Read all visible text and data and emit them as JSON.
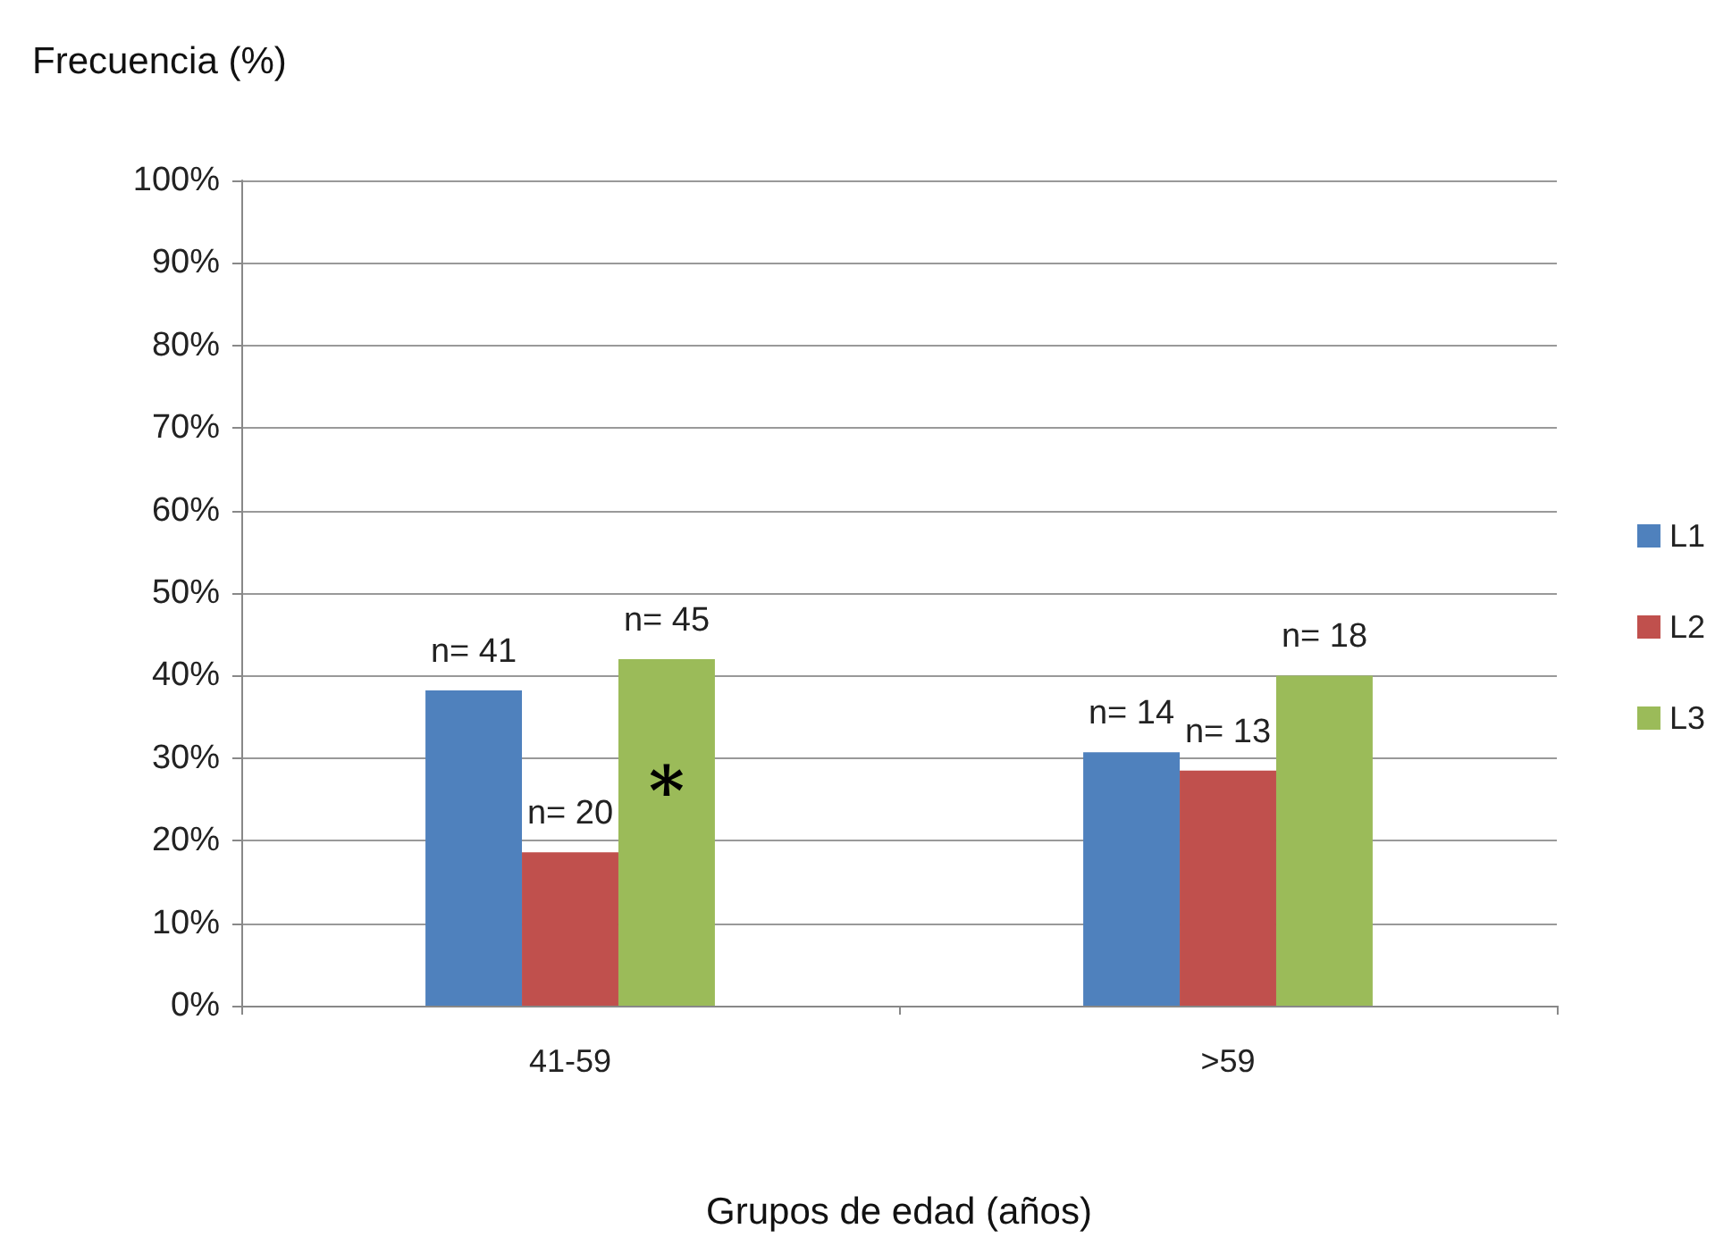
{
  "chart_data": {
    "type": "bar",
    "ylabel": "Frecuencia (%)",
    "xlabel": "Grupos de edad (años)",
    "categories": [
      "41-59",
      ">59"
    ],
    "series": [
      {
        "name": "L1",
        "color": "#4f81bd",
        "values": [
          38.2,
          30.7
        ]
      },
      {
        "name": "L2",
        "color": "#c0504d",
        "values": [
          18.6,
          28.5
        ]
      },
      {
        "name": "L3",
        "color": "#9bbb59",
        "values": [
          42,
          40
        ]
      }
    ],
    "ylim": [
      0,
      100
    ],
    "yticks": [
      {
        "value": 0,
        "label": "0%"
      },
      {
        "value": 10,
        "label": "10%"
      },
      {
        "value": 20,
        "label": "20%"
      },
      {
        "value": 30,
        "label": "30%"
      },
      {
        "value": 40,
        "label": "40%"
      },
      {
        "value": 50,
        "label": "50%"
      },
      {
        "value": 60,
        "label": "60%"
      },
      {
        "value": 70,
        "label": "70%"
      },
      {
        "value": 80,
        "label": "80%"
      },
      {
        "value": 90,
        "label": "90%"
      },
      {
        "value": 100,
        "label": "100%"
      }
    ],
    "grid": "y",
    "legend": "right",
    "annotations": [
      "n= 41",
      "n= 20",
      "n= 45",
      "n= 14",
      "n= 13",
      "n= 18",
      "*"
    ]
  }
}
